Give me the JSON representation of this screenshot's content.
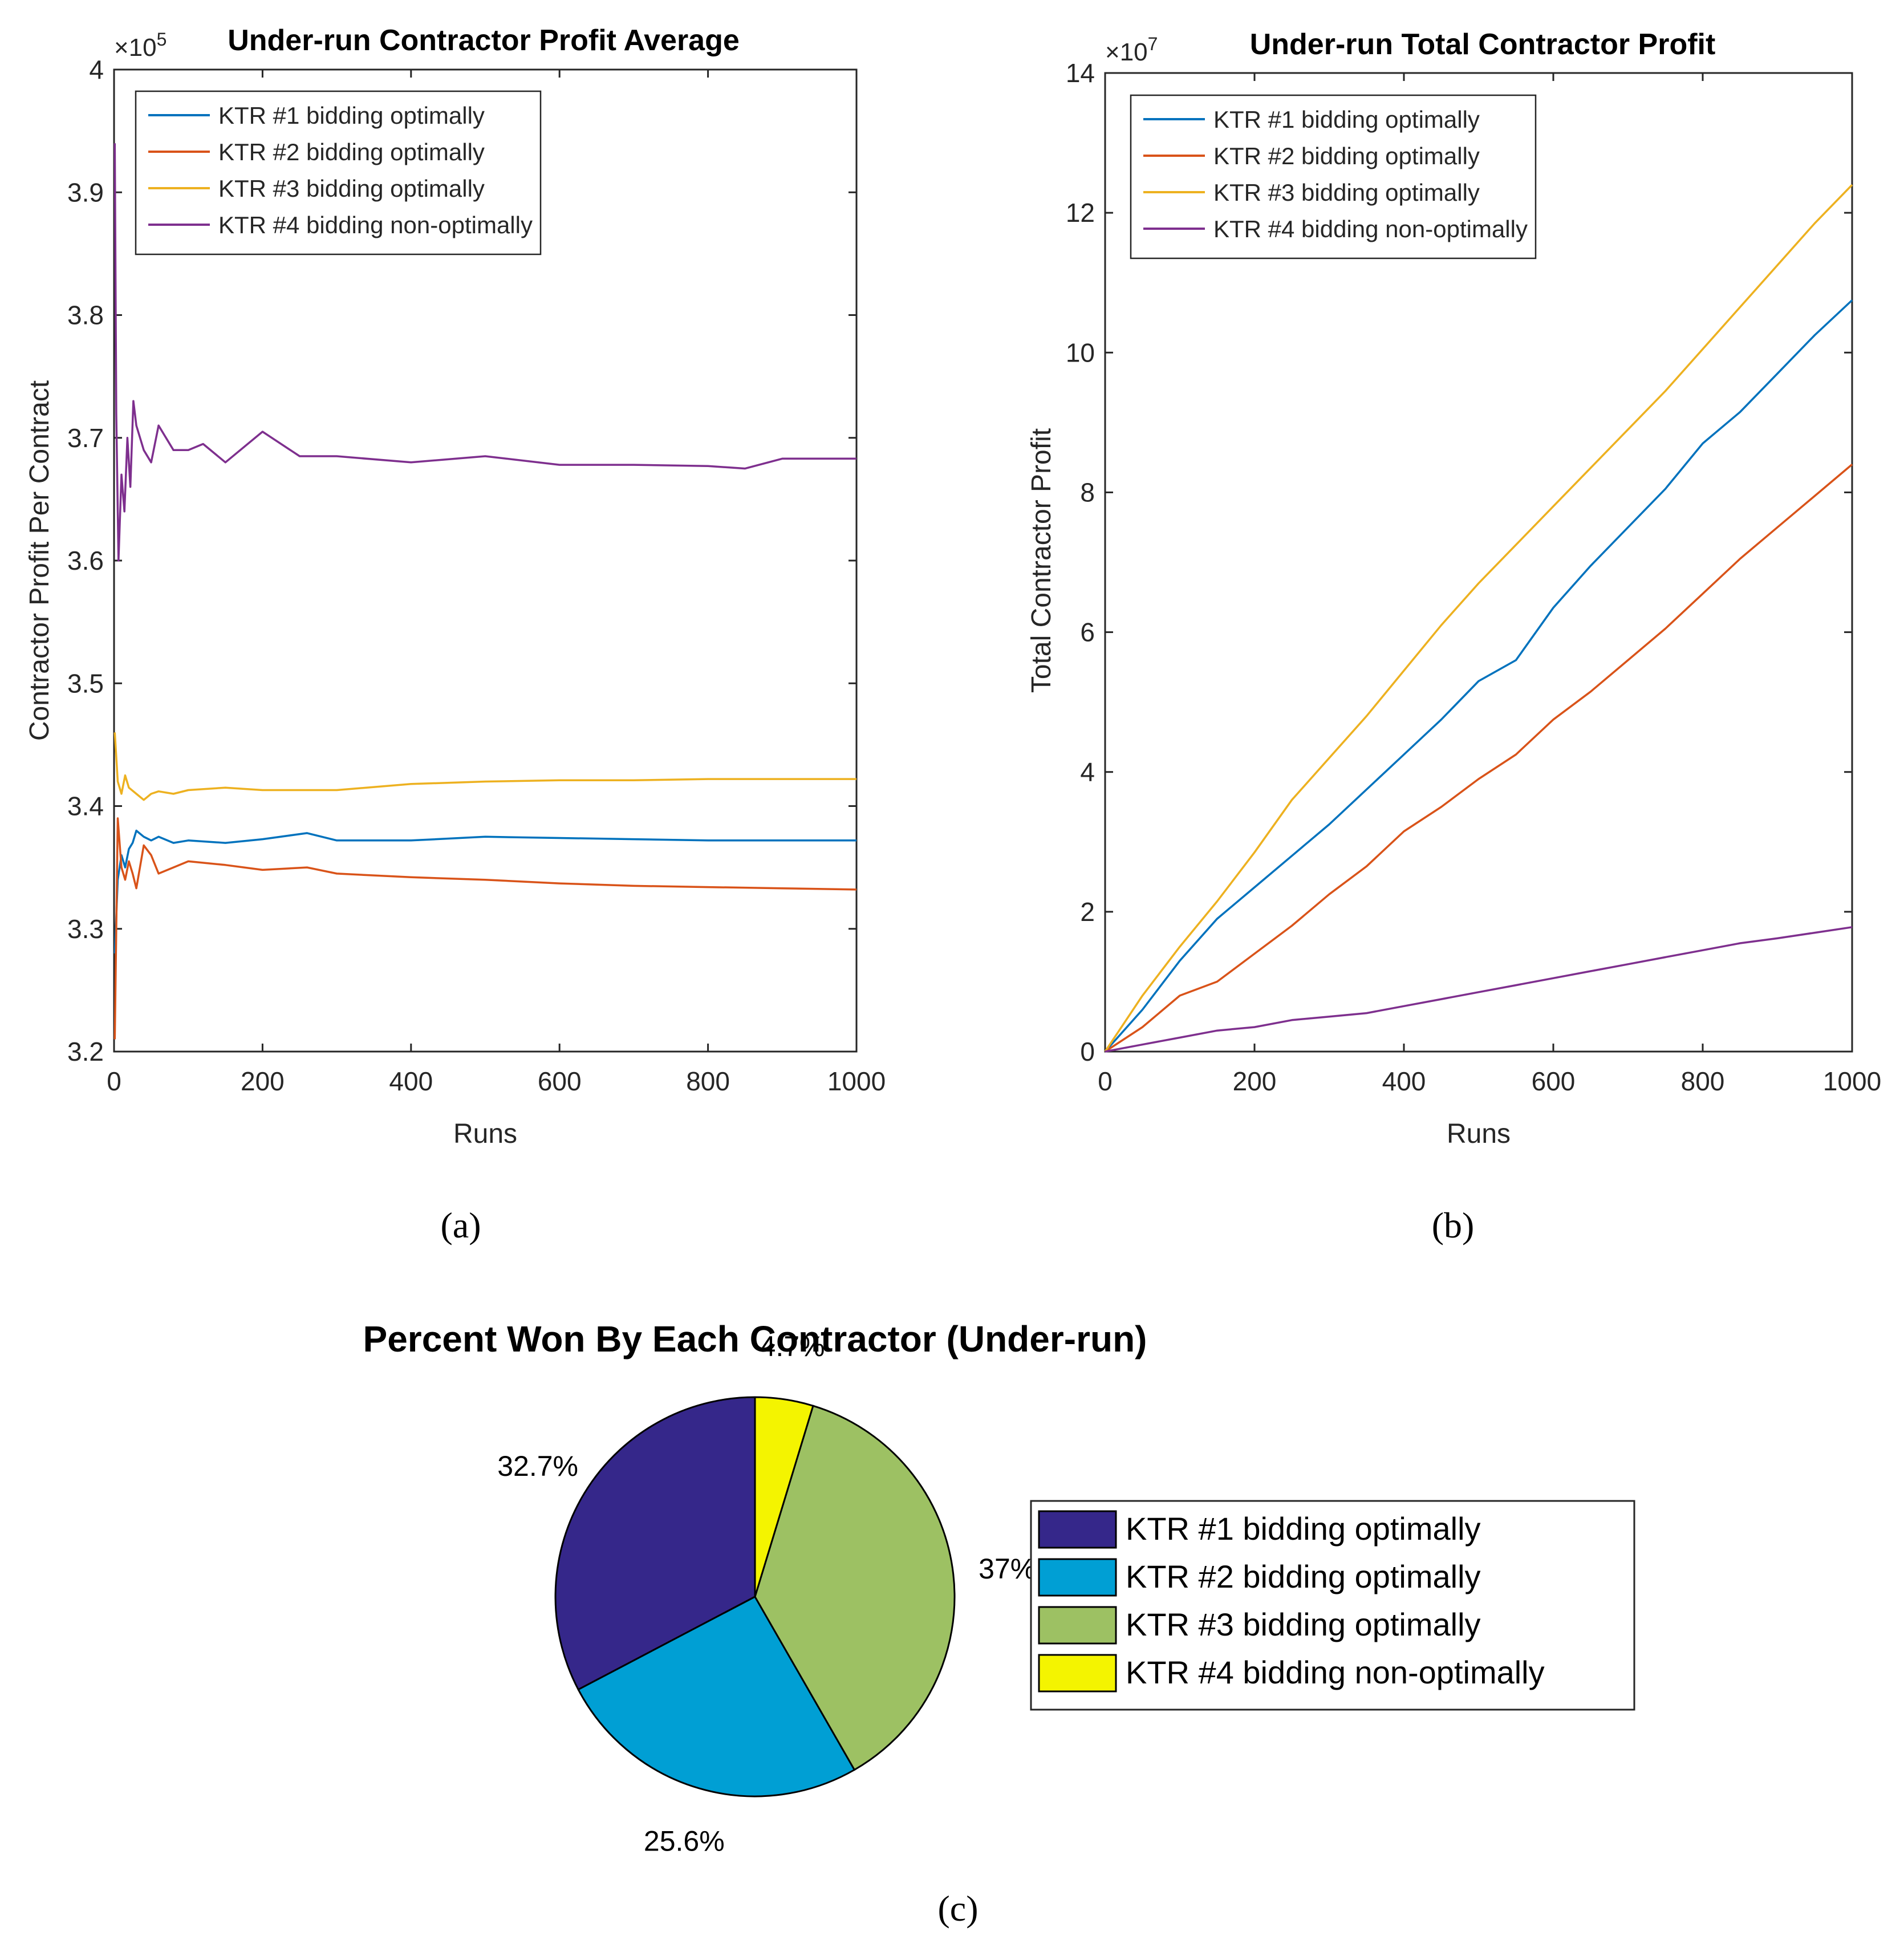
{
  "chart_data": [
    {
      "type": "line",
      "panel_label": "(a)",
      "title": "Under-run Contractor Profit Average",
      "xlabel": "Runs",
      "ylabel": "Contractor Profit Per Contract",
      "exponent_label": "×10",
      "exponent_power": "5",
      "xlim": [
        0,
        1000
      ],
      "ylim": [
        3.2,
        4.0
      ],
      "xticks": [
        "0",
        "200",
        "400",
        "600",
        "800",
        "1000"
      ],
      "yticks": [
        "3.2",
        "3.3",
        "3.4",
        "3.5",
        "3.6",
        "3.7",
        "3.8",
        "3.9",
        "4"
      ],
      "legend_position": "top-left",
      "series": [
        {
          "name": "KTR #1 bidding optimally",
          "color": "#0072BD",
          "x": [
            1,
            5,
            10,
            15,
            20,
            25,
            30,
            40,
            50,
            60,
            80,
            100,
            150,
            200,
            260,
            300,
            400,
            500,
            600,
            700,
            800,
            900,
            1000
          ],
          "values": [
            3.28,
            3.34,
            3.36,
            3.35,
            3.365,
            3.37,
            3.38,
            3.375,
            3.372,
            3.375,
            3.37,
            3.372,
            3.37,
            3.373,
            3.378,
            3.372,
            3.372,
            3.375,
            3.374,
            3.373,
            3.372,
            3.372,
            3.372
          ]
        },
        {
          "name": "KTR #2 bidding optimally",
          "color": "#D95319",
          "x": [
            1,
            5,
            10,
            15,
            20,
            25,
            30,
            40,
            50,
            60,
            80,
            100,
            150,
            200,
            260,
            300,
            400,
            500,
            600,
            700,
            800,
            900,
            1000
          ],
          "values": [
            3.21,
            3.39,
            3.35,
            3.34,
            3.355,
            3.345,
            3.333,
            3.368,
            3.36,
            3.345,
            3.35,
            3.355,
            3.352,
            3.348,
            3.35,
            3.345,
            3.342,
            3.34,
            3.337,
            3.335,
            3.334,
            3.333,
            3.332
          ]
        },
        {
          "name": "KTR #3 bidding optimally",
          "color": "#EDB120",
          "x": [
            1,
            5,
            10,
            15,
            20,
            30,
            40,
            50,
            60,
            80,
            100,
            150,
            200,
            300,
            400,
            500,
            600,
            700,
            800,
            900,
            1000
          ],
          "values": [
            3.46,
            3.42,
            3.41,
            3.425,
            3.415,
            3.41,
            3.405,
            3.41,
            3.412,
            3.41,
            3.413,
            3.415,
            3.413,
            3.413,
            3.418,
            3.42,
            3.421,
            3.421,
            3.422,
            3.422,
            3.422
          ]
        },
        {
          "name": "KTR #4 bidding non-optimally",
          "color": "#7E2F8E",
          "x": [
            1,
            3,
            6,
            10,
            14,
            18,
            22,
            26,
            30,
            35,
            40,
            50,
            60,
            70,
            80,
            100,
            120,
            150,
            200,
            250,
            300,
            400,
            500,
            600,
            700,
            800,
            850,
            900,
            1000
          ],
          "values": [
            3.94,
            3.72,
            3.6,
            3.67,
            3.64,
            3.7,
            3.66,
            3.73,
            3.71,
            3.7,
            3.69,
            3.68,
            3.71,
            3.7,
            3.69,
            3.69,
            3.695,
            3.68,
            3.705,
            3.685,
            3.685,
            3.68,
            3.685,
            3.678,
            3.678,
            3.677,
            3.675,
            3.683,
            3.683
          ]
        }
      ]
    },
    {
      "type": "line",
      "panel_label": "(b)",
      "title": "Under-run Total Contractor Profit",
      "xlabel": "Runs",
      "ylabel": "Total Contractor Profit",
      "exponent_label": "×10",
      "exponent_power": "7",
      "xlim": [
        0,
        1000
      ],
      "ylim": [
        0,
        14
      ],
      "xticks": [
        "0",
        "200",
        "400",
        "600",
        "800",
        "1000"
      ],
      "yticks": [
        "0",
        "2",
        "4",
        "6",
        "8",
        "10",
        "12",
        "14"
      ],
      "legend_position": "top-left",
      "series": [
        {
          "name": "KTR #1 bidding optimally",
          "color": "#0072BD",
          "x": [
            0,
            50,
            100,
            150,
            200,
            250,
            300,
            350,
            400,
            450,
            500,
            550,
            600,
            650,
            700,
            750,
            800,
            850,
            900,
            950,
            1000
          ],
          "values": [
            0,
            0.6,
            1.3,
            1.9,
            2.35,
            2.8,
            3.25,
            3.75,
            4.25,
            4.75,
            5.3,
            5.6,
            6.35,
            6.95,
            7.5,
            8.05,
            8.7,
            9.15,
            9.7,
            10.25,
            10.75
          ]
        },
        {
          "name": "KTR #2 bidding optimally",
          "color": "#D95319",
          "x": [
            0,
            50,
            100,
            150,
            200,
            250,
            300,
            350,
            400,
            450,
            500,
            550,
            600,
            650,
            700,
            750,
            800,
            850,
            900,
            950,
            1000
          ],
          "values": [
            0,
            0.35,
            0.8,
            1.0,
            1.4,
            1.8,
            2.25,
            2.65,
            3.15,
            3.5,
            3.9,
            4.25,
            4.75,
            5.15,
            5.6,
            6.05,
            6.55,
            7.05,
            7.5,
            7.95,
            8.4
          ]
        },
        {
          "name": "KTR #3 bidding optimally",
          "color": "#EDB120",
          "x": [
            0,
            50,
            100,
            150,
            200,
            250,
            300,
            350,
            400,
            450,
            500,
            550,
            600,
            650,
            700,
            750,
            800,
            850,
            900,
            950,
            1000
          ],
          "values": [
            0,
            0.8,
            1.5,
            2.15,
            2.85,
            3.6,
            4.2,
            4.8,
            5.45,
            6.1,
            6.7,
            7.25,
            7.8,
            8.35,
            8.9,
            9.45,
            10.05,
            10.65,
            11.25,
            11.85,
            12.4
          ]
        },
        {
          "name": "KTR #4 bidding non-optimally",
          "color": "#7E2F8E",
          "x": [
            0,
            50,
            100,
            150,
            200,
            250,
            300,
            350,
            400,
            450,
            500,
            550,
            600,
            650,
            700,
            750,
            800,
            850,
            900,
            950,
            1000
          ],
          "values": [
            0,
            0.1,
            0.2,
            0.3,
            0.35,
            0.45,
            0.5,
            0.55,
            0.65,
            0.75,
            0.85,
            0.95,
            1.05,
            1.15,
            1.25,
            1.35,
            1.45,
            1.55,
            1.62,
            1.7,
            1.78
          ]
        }
      ]
    },
    {
      "type": "pie",
      "panel_label": "(c)",
      "title": "Percent Won By Each Contractor (Under-run)",
      "legend_position": "right",
      "categories": [
        "KTR #1 bidding optimally",
        "KTR #2 bidding optimally",
        "KTR #3 bidding optimally",
        "KTR #4 bidding non-optimally"
      ],
      "values": [
        32.7,
        25.6,
        37,
        4.7
      ],
      "labels": [
        "32.7%",
        "25.6%",
        "37%",
        "4.7%"
      ],
      "colors": [
        "#35278A",
        "#009FD4",
        "#9DC163",
        "#F4F400"
      ]
    }
  ]
}
